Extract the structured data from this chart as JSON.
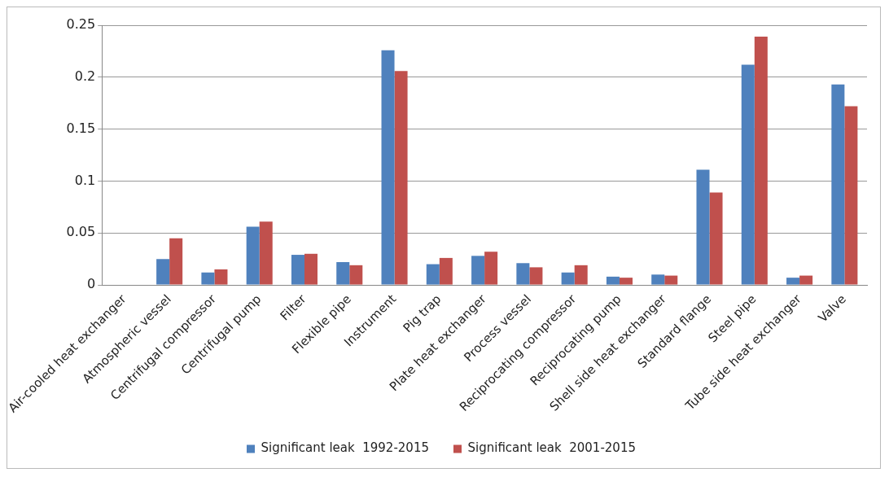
{
  "chart_data": {
    "type": "bar",
    "categories": [
      "Air-cooled heat exchanger",
      "Atmospheric vessel",
      "Centrifugal compressor",
      "Centrifugal pump",
      "Filter",
      "Flexible pipe",
      "Instrument",
      "Pig trap",
      "Plate heat exchanger",
      "Process vessel",
      "Reciprocating compressor",
      "Reciprocating pump",
      "Shell side heat exchanger",
      "Standard flange",
      "Steel pipe",
      "Tube side heat exchanger",
      "Valve"
    ],
    "series": [
      {
        "name": "Significant leak  1992-2015",
        "color": "#4f81bd",
        "values": [
          0,
          0.025,
          0.012,
          0.056,
          0.029,
          0.022,
          0.226,
          0.02,
          0.028,
          0.021,
          0.012,
          0.008,
          0.01,
          0.111,
          0.212,
          0.007,
          0.193
        ]
      },
      {
        "name": "Significant leak  2001-2015",
        "color": "#c0504d",
        "values": [
          0,
          0.045,
          0.015,
          0.061,
          0.03,
          0.019,
          0.206,
          0.026,
          0.032,
          0.017,
          0.019,
          0.007,
          0.009,
          0.089,
          0.239,
          0.009,
          0.172
        ]
      }
    ],
    "ylim": [
      0,
      0.25
    ],
    "yticks": [
      0,
      0.05,
      0.1,
      0.15,
      0.2,
      0.25
    ],
    "grid": "y",
    "legend": "bottom"
  }
}
